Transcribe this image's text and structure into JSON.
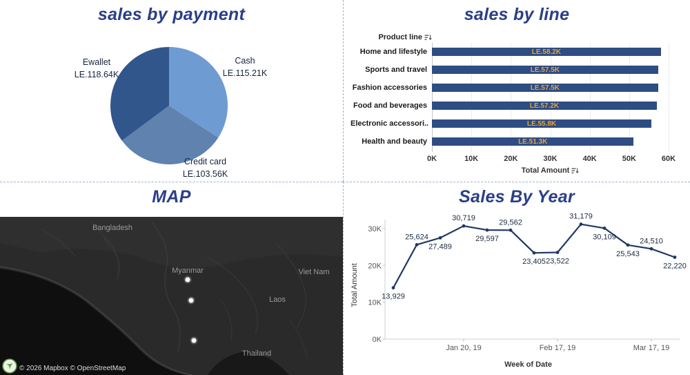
{
  "chart_data": [
    {
      "id": "sales-by-payment",
      "type": "pie",
      "title": "sales by payment",
      "slices": [
        {
          "label": "Cash",
          "value": 115.21,
          "value_label": "LE.115.21K",
          "color": "#6f9bd3"
        },
        {
          "label": "Credit card",
          "value": 103.56,
          "value_label": "LE.103.56K",
          "color": "#5f83ae"
        },
        {
          "label": "Ewallet",
          "value": 118.64,
          "value_label": "LE.118.64K",
          "color": "#31568c"
        }
      ],
      "start_angle": "top",
      "direction": "clockwise"
    },
    {
      "id": "sales-by-line",
      "type": "bar",
      "title": "sales by line",
      "row_header": "Product line",
      "categories": [
        "Home and lifestyle",
        "Sports and travel",
        "Fashion accessories",
        "Food and beverages",
        "Electronic accessori..",
        "Health and beauty"
      ],
      "values": [
        58.2,
        57.5,
        57.5,
        57.2,
        55.8,
        51.3
      ],
      "bar_labels": [
        "LE.58.2K",
        "LE.57.5K",
        "LE.57.5K",
        "LE.57.2K",
        "LE.55.8K",
        "LE.51.3K"
      ],
      "x_ticks": [
        "0K",
        "10K",
        "20K",
        "30K",
        "40K",
        "50K",
        "60K"
      ],
      "xlim": [
        0,
        60
      ],
      "xlabel": "Total Amount",
      "bar_color": "#2e4d82",
      "label_color": "#f0a232",
      "grid": true
    },
    {
      "id": "sales-by-year",
      "type": "line",
      "title": "Sales By Year",
      "ylabel": "Total Amount",
      "xlabel": "Week of Date",
      "ylim": [
        0,
        30000
      ],
      "y_ticks": [
        {
          "value": 0,
          "label": "0K"
        },
        {
          "value": 10000,
          "label": "10K"
        },
        {
          "value": 20000,
          "label": "20K"
        },
        {
          "value": 30000,
          "label": "30K"
        }
      ],
      "x_ticks": [
        {
          "index": 3,
          "label": "Jan 20, 19"
        },
        {
          "index": 7,
          "label": "Feb 17, 19"
        },
        {
          "index": 11,
          "label": "Mar 17, 19"
        }
      ],
      "values": [
        13929,
        25624,
        27489,
        30719,
        29597,
        29562,
        23405,
        23522,
        31179,
        30109,
        25543,
        24510,
        22220
      ],
      "point_labels": [
        "13,929",
        "25,624",
        "27,489",
        "30,719",
        "29,597",
        "29,562",
        "23,405",
        "23,522",
        "31,179",
        "30,109",
        "25,543",
        "24,510",
        "22,220"
      ],
      "label_positions": [
        "below",
        "above",
        "below",
        "above",
        "below",
        "above",
        "below",
        "below",
        "above",
        "below",
        "below",
        "above",
        "below"
      ],
      "line_color": "#1f3864",
      "grid": false
    }
  ],
  "map_panel": {
    "title": "MAP",
    "labels": [
      "Bangladesh",
      "Myanmar",
      "Viet Nam",
      "Laos",
      "Thailand"
    ],
    "attribution": "© 2026 Mapbox © OpenStreetMap"
  },
  "theme": {
    "title_color": "#2a3f87",
    "divider_color": "#9db1cf",
    "bar_color": "#2e4d82",
    "bar_label_color": "#f0a232",
    "line_color": "#1f3864"
  }
}
